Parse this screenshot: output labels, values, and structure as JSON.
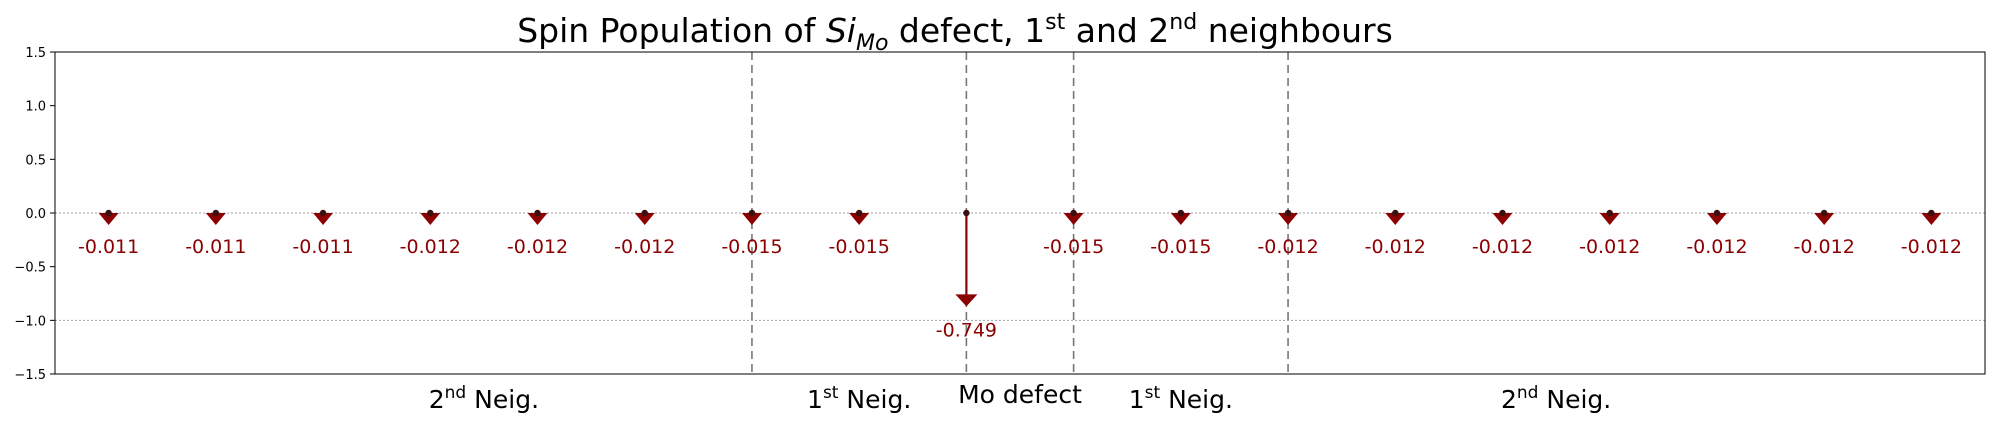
{
  "chart_data": {
    "type": "scatter",
    "title": {
      "prefix": "Spin Population of ",
      "symbol": "Si",
      "symbol_sub": "Mo",
      "middle": " defect, 1",
      "sup1": "st",
      "and_text": " and 2",
      "sup2": "nd",
      "suffix": " neighbours"
    },
    "ylim": [
      -1.5,
      1.5
    ],
    "yticks": [
      1.5,
      1.0,
      0.5,
      0.0,
      -0.5,
      -1.0,
      -1.5
    ],
    "ytick_labels": [
      "1.5",
      "1.0",
      "0.5",
      "0.0",
      "−0.5",
      "−1.0",
      "−1.5"
    ],
    "grid_y": [
      0.0,
      -1.0
    ],
    "xlim": [
      -0.5,
      17.5
    ],
    "x": [
      0,
      1,
      2,
      3,
      4,
      5,
      6,
      7,
      8,
      9,
      10,
      11,
      12,
      13,
      14,
      15,
      16,
      17
    ],
    "values": [
      -0.011,
      -0.011,
      -0.011,
      -0.012,
      -0.012,
      -0.012,
      -0.015,
      -0.015,
      -0.749,
      -0.015,
      -0.015,
      -0.012,
      -0.012,
      -0.012,
      -0.012,
      -0.012,
      -0.012,
      -0.012
    ],
    "value_labels": [
      "-0.011",
      "-0.011",
      "-0.011",
      "-0.012",
      "-0.012",
      "-0.012",
      "-0.015",
      "-0.015",
      "-0.749",
      "-0.015",
      "-0.015",
      "-0.012",
      "-0.012",
      "-0.012",
      "-0.012",
      "-0.012",
      "-0.012",
      "-0.012"
    ],
    "separators_x": [
      6,
      8,
      9,
      11
    ],
    "groups": [
      {
        "label": "2",
        "sup": "nd",
        "rest": " Neig.",
        "x": 3.5
      },
      {
        "label": "1",
        "sup": "st",
        "rest": " Neig.",
        "x": 7
      },
      {
        "label": "Mo defect",
        "sup": "",
        "rest": "",
        "x": 8.5
      },
      {
        "label": "1",
        "sup": "st",
        "rest": " Neig.",
        "x": 10
      },
      {
        "label": "2",
        "sup": "nd",
        "rest": " Neig.",
        "x": 13.5
      }
    ],
    "arrow_color": "#8b0000",
    "label_color": "#8b0000",
    "dot_color": "#3a1010"
  }
}
